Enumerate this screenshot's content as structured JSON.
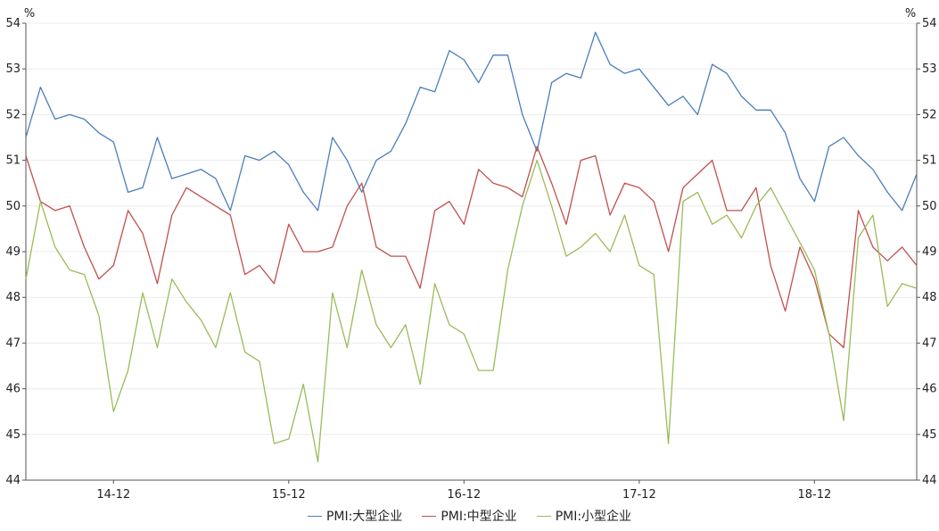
{
  "chart_data": {
    "type": "line",
    "y_unit": "%",
    "ylim": [
      44,
      54
    ],
    "y_ticks": [
      44,
      45,
      46,
      47,
      48,
      49,
      50,
      51,
      52,
      53,
      54
    ],
    "x_tick_labels": [
      {
        "label": "14-12",
        "index": 6
      },
      {
        "label": "15-12",
        "index": 18
      },
      {
        "label": "16-12",
        "index": 30
      },
      {
        "label": "17-12",
        "index": 42
      },
      {
        "label": "18-12",
        "index": 54
      }
    ],
    "grid": "horizontal",
    "legend_position": "bottom",
    "series": [
      {
        "name": "PMI:大型企业",
        "color": "#4a7ebb",
        "values": [
          51.5,
          52.6,
          51.9,
          52.0,
          51.9,
          51.6,
          51.4,
          50.3,
          50.4,
          51.5,
          50.6,
          50.7,
          50.8,
          50.6,
          49.9,
          51.1,
          51.0,
          51.2,
          50.9,
          50.3,
          49.9,
          51.5,
          51.0,
          50.3,
          51.0,
          51.2,
          51.8,
          52.6,
          52.5,
          53.4,
          53.2,
          52.7,
          53.3,
          53.3,
          52.0,
          51.2,
          52.7,
          52.9,
          52.8,
          53.8,
          53.1,
          52.9,
          53.0,
          52.6,
          52.2,
          52.4,
          52.0,
          53.1,
          52.9,
          52.4,
          52.1,
          52.1,
          51.6,
          50.6,
          50.1,
          51.3,
          51.5,
          51.1,
          50.8,
          50.3,
          49.9,
          50.7
        ]
      },
      {
        "name": "PMI:中型企业",
        "color": "#c0504d",
        "values": [
          51.1,
          50.1,
          49.9,
          50.0,
          49.1,
          48.4,
          48.7,
          49.9,
          49.4,
          48.3,
          49.8,
          50.4,
          50.2,
          50.0,
          49.8,
          48.5,
          48.7,
          48.3,
          49.6,
          49.0,
          49.0,
          49.1,
          50.0,
          50.5,
          49.1,
          48.9,
          48.9,
          48.2,
          49.9,
          50.1,
          49.6,
          50.8,
          50.5,
          50.4,
          50.2,
          51.3,
          50.5,
          49.6,
          51.0,
          51.1,
          49.8,
          50.5,
          50.4,
          50.1,
          49.0,
          50.4,
          50.7,
          51.0,
          49.9,
          49.9,
          50.4,
          48.7,
          47.7,
          49.1,
          48.4,
          47.2,
          46.9,
          49.9,
          49.1,
          48.8,
          49.1,
          48.7
        ]
      },
      {
        "name": "PMI:小型企业",
        "color": "#9bbb59",
        "values": [
          48.4,
          50.1,
          49.1,
          48.6,
          48.5,
          47.6,
          45.5,
          46.4,
          48.1,
          46.9,
          48.4,
          47.9,
          47.5,
          46.9,
          48.1,
          46.8,
          46.6,
          44.8,
          44.9,
          46.1,
          44.4,
          48.1,
          46.9,
          48.6,
          47.4,
          46.9,
          47.4,
          46.1,
          48.3,
          47.4,
          47.2,
          46.4,
          46.4,
          48.6,
          50.0,
          51.0,
          50.0,
          48.9,
          49.1,
          49.4,
          49.0,
          49.8,
          48.7,
          48.5,
          44.8,
          50.1,
          50.3,
          49.6,
          49.8,
          49.3,
          50.0,
          50.4,
          49.8,
          49.2,
          48.6,
          47.2,
          45.3,
          49.3,
          49.8,
          47.8,
          48.3,
          48.2
        ]
      }
    ]
  }
}
